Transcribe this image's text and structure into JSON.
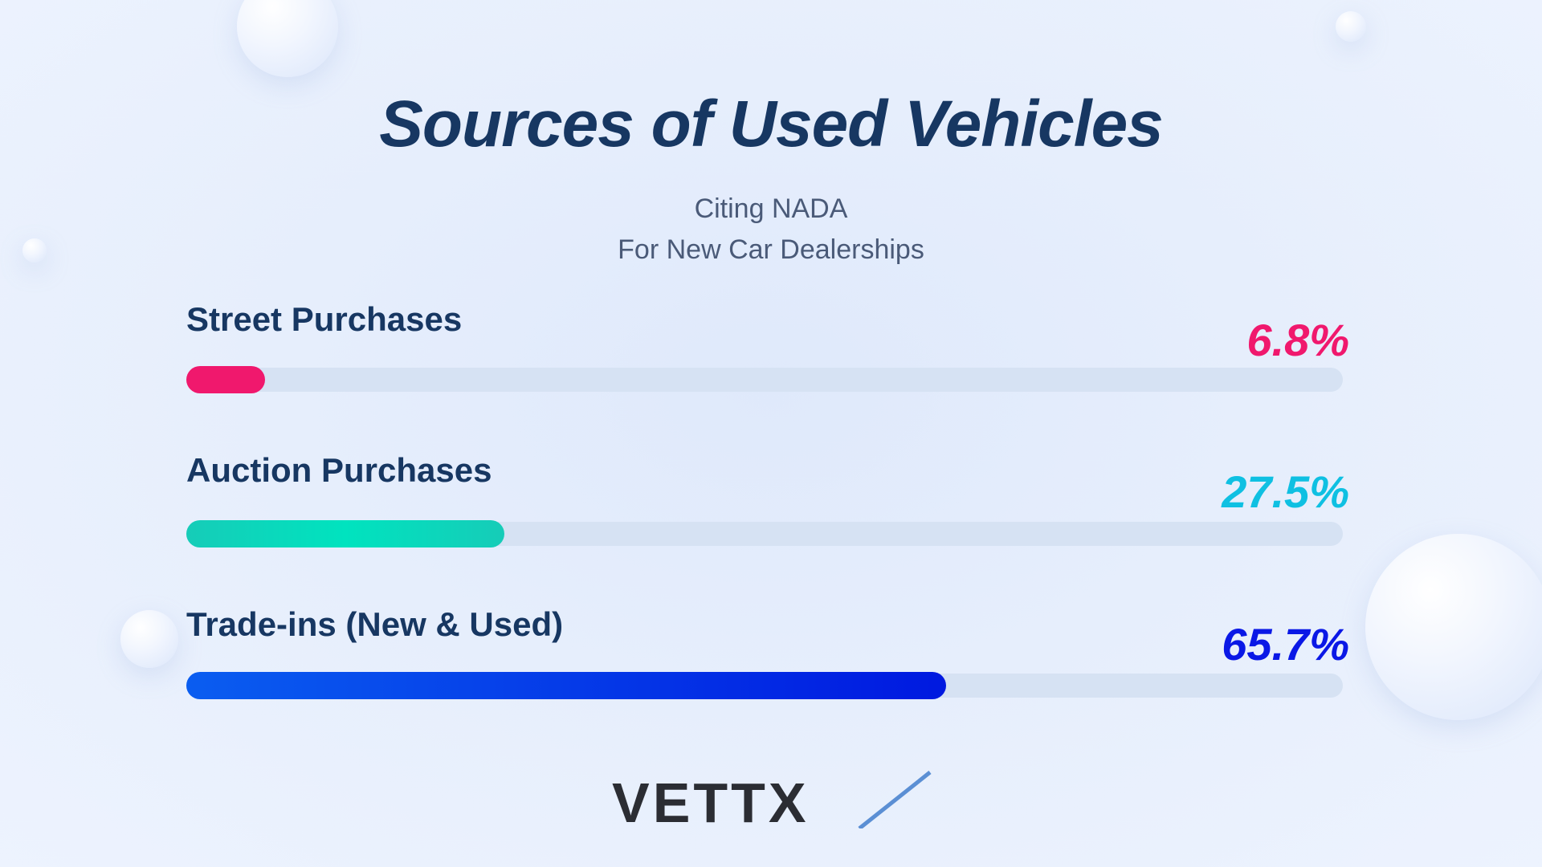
{
  "title": "Sources of Used Vehicles",
  "subtitle_lines": [
    "Citing NADA",
    "For New Car Dealerships"
  ],
  "colors": {
    "street": "#f0186d",
    "auction_start": "#16ccb8",
    "auction_end": "#00e3bf",
    "auction_text": "#0fc0e2",
    "tradein_start": "#0a5df0",
    "tradein_end": "#0019e0",
    "tradein_text": "#0a18e6",
    "track": "#d6e2f3"
  },
  "chart_data": {
    "type": "bar",
    "orientation": "horizontal",
    "title": "Sources of Used Vehicles",
    "categories": [
      "Street Purchases",
      "Auction Purchases",
      "Trade-ins (New & Used)"
    ],
    "values": [
      6.8,
      27.5,
      65.7
    ],
    "value_labels": [
      "6.8%",
      "27.5%",
      "65.7%"
    ],
    "xlim": [
      0,
      100
    ]
  },
  "logo": {
    "text": "VETTX"
  }
}
